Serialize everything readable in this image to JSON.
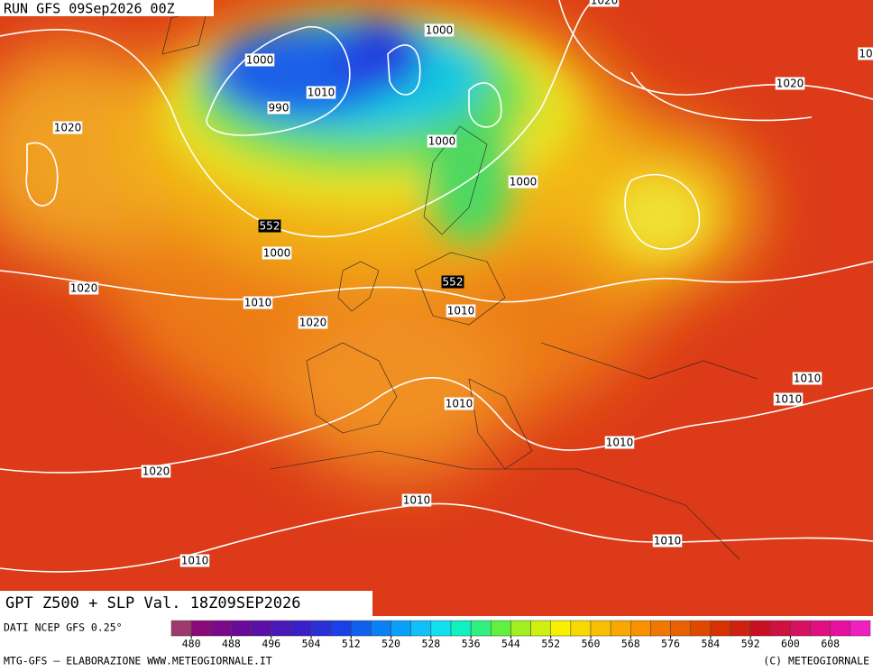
{
  "header": {
    "run": "RUN GFS 09Sep2026 00Z"
  },
  "contour_labels": [
    {
      "text": "1000"
    },
    {
      "text": "1000"
    },
    {
      "text": "1010"
    },
    {
      "text": "990"
    },
    {
      "text": "1020"
    },
    {
      "text": "1000"
    },
    {
      "text": "1020"
    },
    {
      "text": "1000"
    },
    {
      "text": "552"
    },
    {
      "text": "1000"
    },
    {
      "text": "1020"
    },
    {
      "text": "1010"
    },
    {
      "text": "552"
    },
    {
      "text": "1010"
    },
    {
      "text": "1020"
    },
    {
      "text": "1010"
    },
    {
      "text": "1010"
    },
    {
      "text": "1010"
    },
    {
      "text": "1010"
    },
    {
      "text": "1020"
    },
    {
      "text": "1010"
    },
    {
      "text": "1010"
    },
    {
      "text": "1010"
    },
    {
      "text": "1020"
    },
    {
      "text": "10"
    }
  ],
  "footer": {
    "title": "GPT Z500 + SLP Val. 18Z09SEP2026",
    "source": "DATI NCEP GFS 0.25°",
    "credit": "MTG-GFS — ELABORAZIONE WWW.METEOGIORNALE.IT",
    "copyright": "(C) METEOGIORNALE"
  },
  "colorbar": {
    "colors": [
      "#9e3a6e",
      "#8b0a7a",
      "#7a0a8a",
      "#6a0a9a",
      "#5a10a8",
      "#4a18b8",
      "#3a20c8",
      "#2a30d8",
      "#1a40e8",
      "#1060f0",
      "#0a80f5",
      "#08a0f8",
      "#10c0f8",
      "#10e0f0",
      "#10f0c0",
      "#30f080",
      "#60f040",
      "#a0f020",
      "#d0f010",
      "#f8f000",
      "#f8d800",
      "#f8c000",
      "#f8a800",
      "#f89000",
      "#f07800",
      "#e86000",
      "#e04800",
      "#d83000",
      "#d02010",
      "#c81020",
      "#d01040",
      "#d81060",
      "#e01080",
      "#e810a0",
      "#f020c0"
    ],
    "ticks": [
      480,
      488,
      496,
      504,
      512,
      520,
      528,
      536,
      544,
      552,
      560,
      568,
      576,
      584,
      592,
      600,
      608
    ]
  }
}
